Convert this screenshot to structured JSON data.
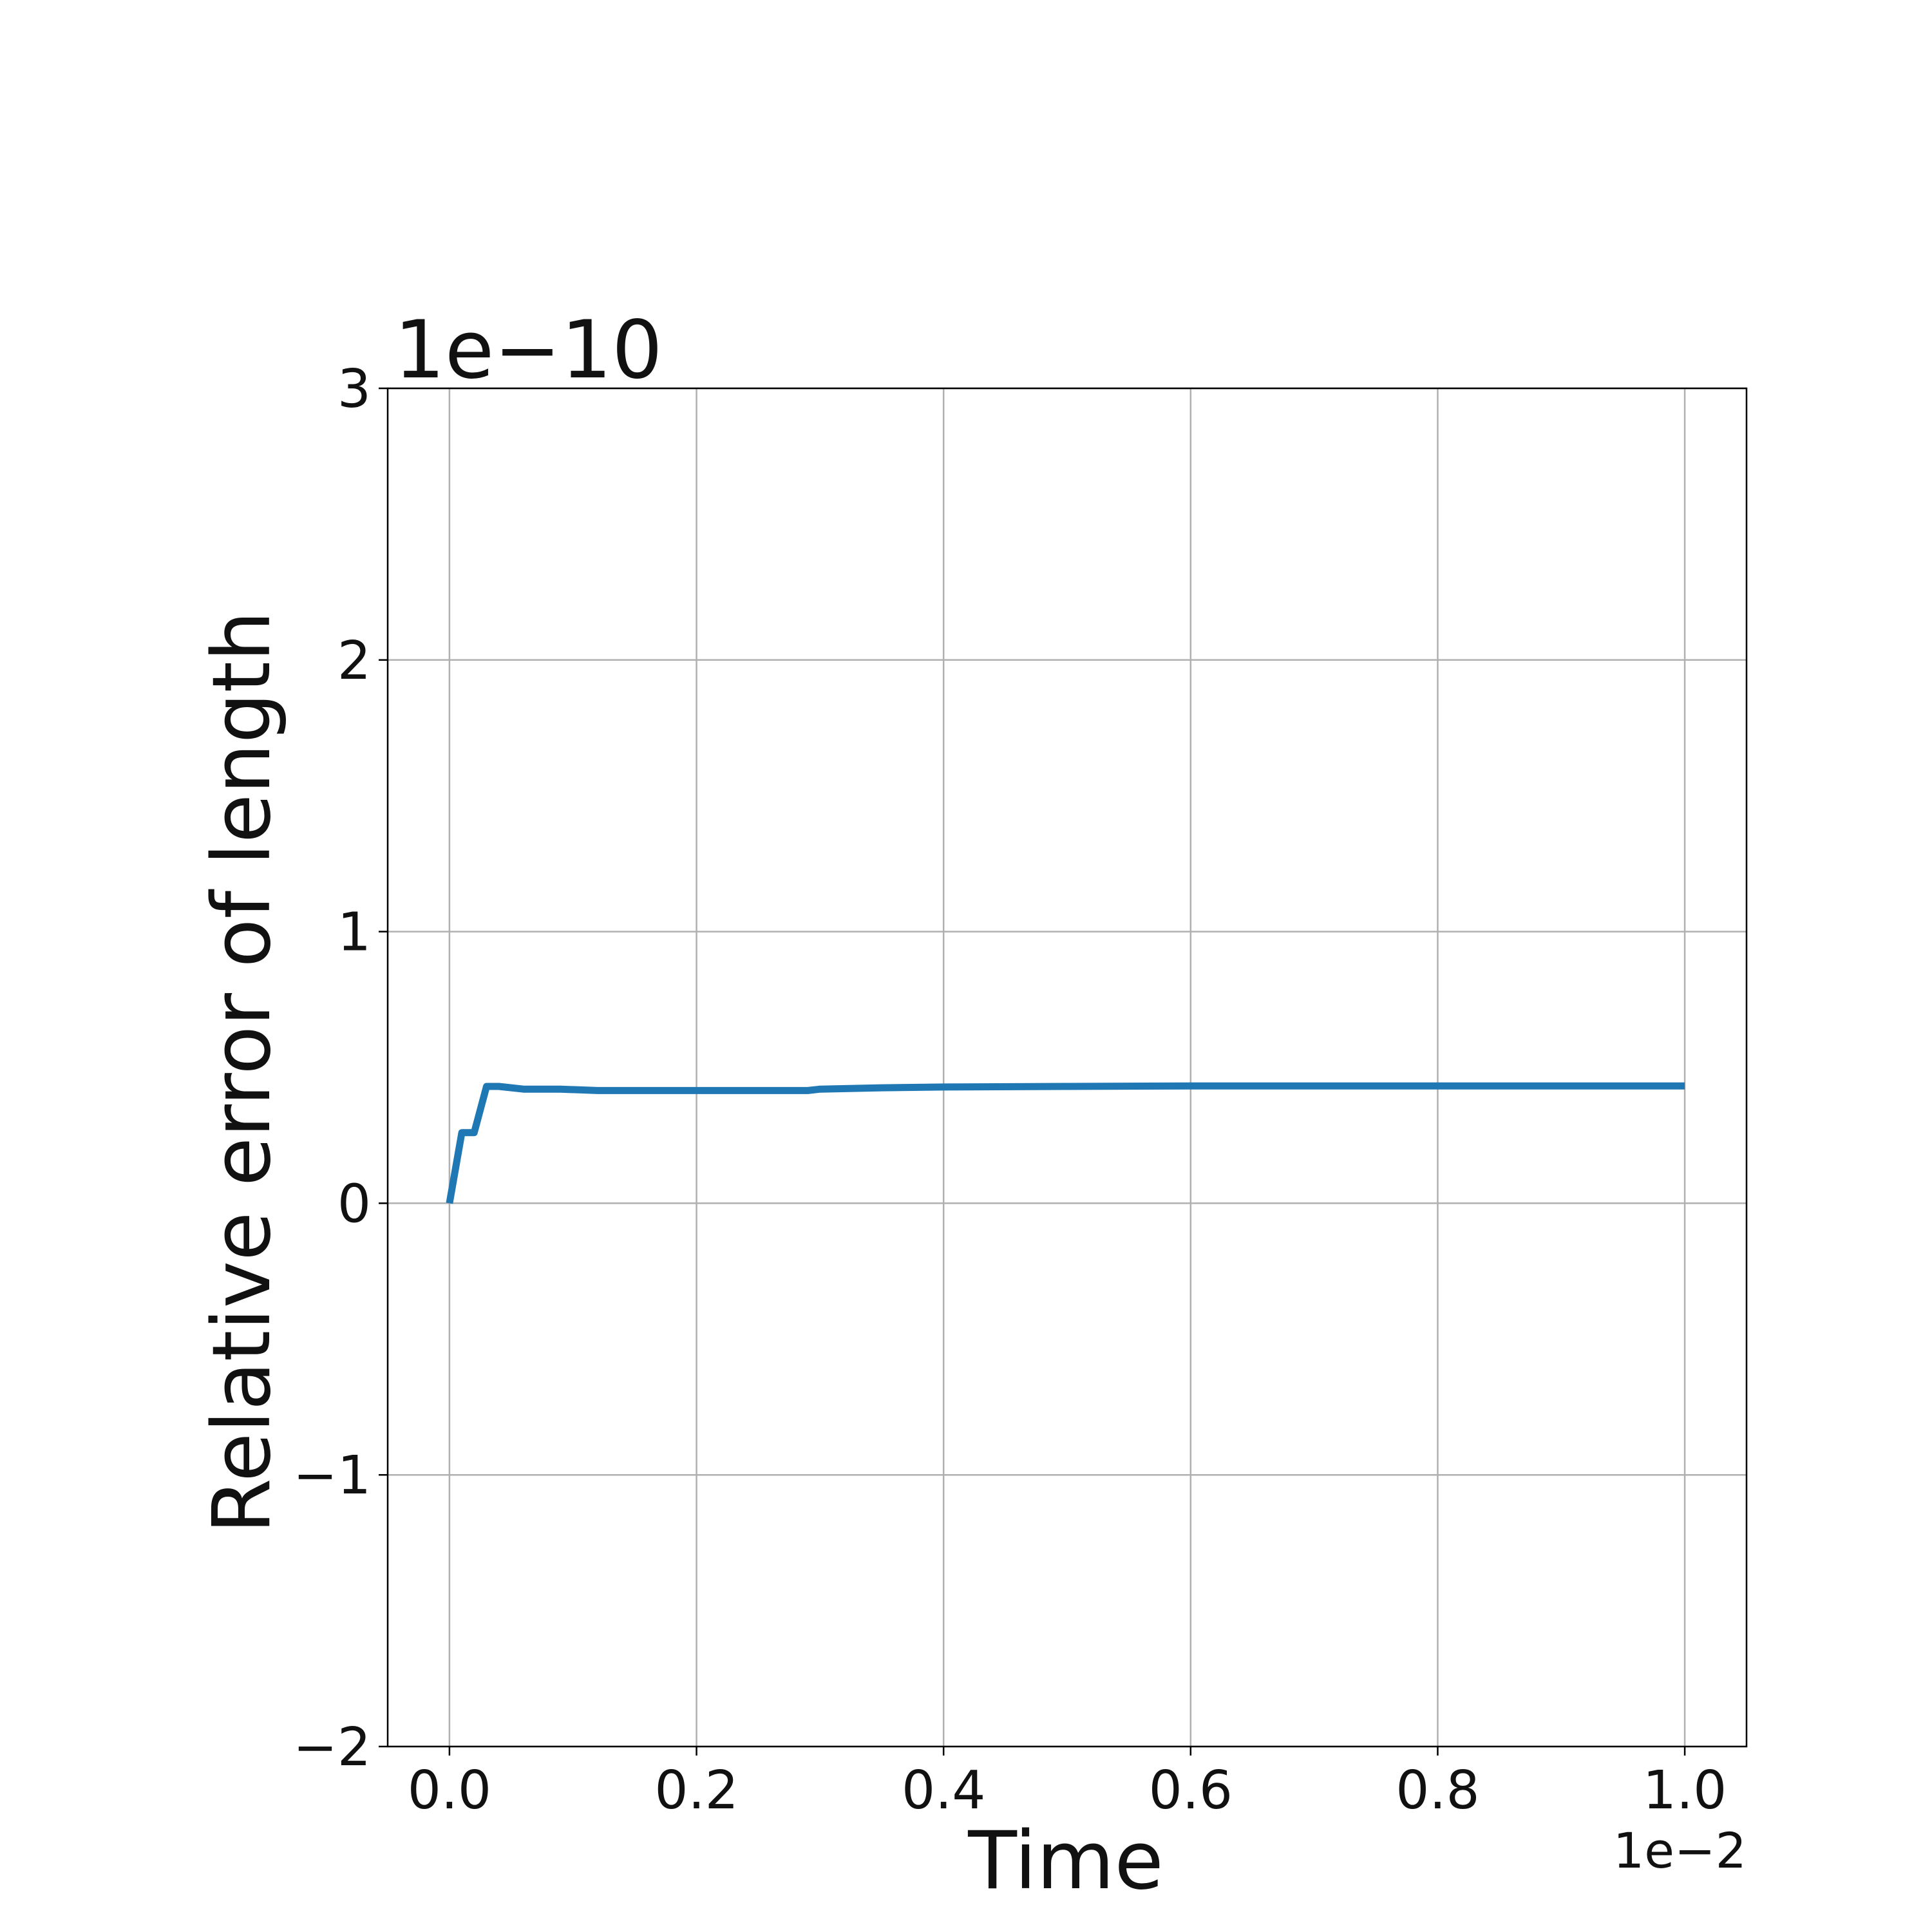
{
  "chart_data": {
    "type": "line",
    "title": "",
    "xlabel": "Time",
    "ylabel": "Relative error of length",
    "x_offset_label": "1e−2",
    "y_offset_label": "1e−10",
    "xlim": [
      -0.05,
      1.05
    ],
    "ylim": [
      -2,
      3
    ],
    "x_ticks": [
      0.0,
      0.2,
      0.4,
      0.6,
      0.8,
      1.0
    ],
    "x_tick_labels": [
      "0.0",
      "0.2",
      "0.4",
      "0.6",
      "0.8",
      "1.0"
    ],
    "y_ticks": [
      -2,
      -1,
      0,
      1,
      2,
      3
    ],
    "y_tick_labels": [
      "−2",
      "−1",
      "0",
      "1",
      "2",
      "3"
    ],
    "grid": true,
    "series": [
      {
        "color": "#1f77b4",
        "x": [
          0.0,
          0.01,
          0.02,
          0.03,
          0.04,
          0.06,
          0.09,
          0.12,
          0.2,
          0.29,
          0.3,
          0.35,
          0.4,
          0.5,
          0.6,
          0.7,
          0.8,
          0.9,
          1.0
        ],
        "y": [
          0.0,
          0.26,
          0.26,
          0.43,
          0.43,
          0.42,
          0.42,
          0.415,
          0.415,
          0.415,
          0.42,
          0.425,
          0.428,
          0.43,
          0.432,
          0.432,
          0.432,
          0.432,
          0.432
        ]
      }
    ]
  }
}
